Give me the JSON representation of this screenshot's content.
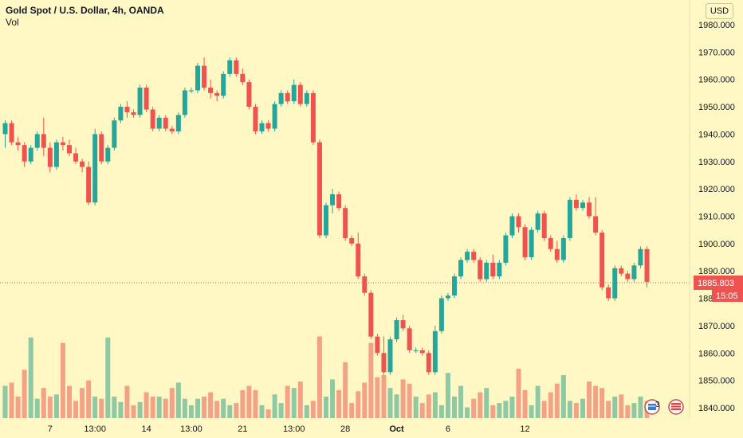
{
  "header": {
    "title": "Gold Spot / U.S. Dollar, 4h, OANDA",
    "volume_label": "Vol",
    "currency_button": "USD"
  },
  "price_badge": {
    "price": "1885.803",
    "countdown": "15:05"
  },
  "colors": {
    "background": "#FFF8C4",
    "up": "#26A69A",
    "down": "#EF5350",
    "vol_up": "#8EC9A4",
    "vol_down": "#F4A287",
    "price_line": "#EF5350"
  },
  "chart_data": {
    "type": "candlestick",
    "title": "Gold Spot / U.S. Dollar, 4h, OANDA",
    "y_axis": {
      "ticks": [
        "1840.000",
        "1850.000",
        "1860.000",
        "1870.000",
        "1880.000",
        "1890.000",
        "1900.000",
        "1910.000",
        "1920.000",
        "1930.000",
        "1940.000",
        "1950.000",
        "1960.000",
        "1970.000",
        "1980.000"
      ],
      "ylim": [
        1837,
        1982
      ],
      "position": "right"
    },
    "x_axis": {
      "ticks": [
        {
          "label": "7",
          "bar": 7
        },
        {
          "label": "13:00",
          "bar": 14
        },
        {
          "label": "14",
          "bar": 22
        },
        {
          "label": "13:00",
          "bar": 29
        },
        {
          "label": "21",
          "bar": 37
        },
        {
          "label": "13:00",
          "bar": 45
        },
        {
          "label": "28",
          "bar": 53
        },
        {
          "label": "Oct",
          "bar": 61,
          "bold": true
        },
        {
          "label": "6",
          "bar": 69
        },
        {
          "label": "12",
          "bar": 81
        }
      ]
    },
    "current_price": 1885.803,
    "candles": [
      [
        1940,
        1945,
        1935,
        1944
      ],
      [
        1944,
        1945,
        1936,
        1937
      ],
      [
        1937,
        1939,
        1934,
        1936
      ],
      [
        1936,
        1937,
        1928,
        1930
      ],
      [
        1930,
        1936,
        1929,
        1935
      ],
      [
        1935,
        1941,
        1934,
        1940
      ],
      [
        1940,
        1946,
        1932,
        1935
      ],
      [
        1935,
        1937,
        1926,
        1928
      ],
      [
        1928,
        1938,
        1927,
        1937
      ],
      [
        1937,
        1939,
        1934,
        1936
      ],
      [
        1936,
        1938,
        1932,
        1933
      ],
      [
        1933,
        1935,
        1929,
        1930
      ],
      [
        1930,
        1931,
        1926,
        1928
      ],
      [
        1928,
        1930,
        1914,
        1915
      ],
      [
        1915,
        1942,
        1914,
        1940
      ],
      [
        1940,
        1941,
        1929,
        1930
      ],
      [
        1930,
        1936,
        1929,
        1935
      ],
      [
        1935,
        1946,
        1934,
        1945
      ],
      [
        1945,
        1951,
        1944,
        1950
      ],
      [
        1950,
        1952,
        1946,
        1948
      ],
      [
        1948,
        1949,
        1946,
        1947
      ],
      [
        1947,
        1958,
        1946,
        1957
      ],
      [
        1957,
        1958,
        1948,
        1949
      ],
      [
        1949,
        1950,
        1941,
        1942
      ],
      [
        1942,
        1947,
        1941,
        1946
      ],
      [
        1946,
        1947,
        1941,
        1942
      ],
      [
        1942,
        1943,
        1940,
        1941
      ],
      [
        1941,
        1948,
        1940,
        1947
      ],
      [
        1947,
        1957,
        1946,
        1956
      ],
      [
        1956,
        1957,
        1955,
        1956
      ],
      [
        1956,
        1966,
        1955,
        1965
      ],
      [
        1965,
        1968,
        1956,
        1957
      ],
      [
        1957,
        1960,
        1953,
        1955
      ],
      [
        1955,
        1956,
        1952,
        1954
      ],
      [
        1954,
        1963,
        1953,
        1962
      ],
      [
        1962,
        1968,
        1961,
        1967
      ],
      [
        1967,
        1968,
        1961,
        1962
      ],
      [
        1962,
        1964,
        1958,
        1959
      ],
      [
        1959,
        1960,
        1949,
        1950
      ],
      [
        1950,
        1951,
        1940,
        1941
      ],
      [
        1941,
        1945,
        1940,
        1944
      ],
      [
        1944,
        1945,
        1941,
        1942
      ],
      [
        1942,
        1952,
        1941,
        1951
      ],
      [
        1951,
        1956,
        1950,
        1955
      ],
      [
        1955,
        1956,
        1951,
        1952
      ],
      [
        1952,
        1960,
        1951,
        1958
      ],
      [
        1958,
        1959,
        1950,
        1951
      ],
      [
        1951,
        1956,
        1950,
        1955
      ],
      [
        1955,
        1956,
        1936,
        1937
      ],
      [
        1937,
        1938,
        1902,
        1903
      ],
      [
        1903,
        1915,
        1902,
        1914
      ],
      [
        1914,
        1920,
        1911,
        1918
      ],
      [
        1918,
        1919,
        1912,
        1913
      ],
      [
        1913,
        1914,
        1901,
        1902
      ],
      [
        1902,
        1903,
        1899,
        1900
      ],
      [
        1900,
        1904,
        1887,
        1888
      ],
      [
        1888,
        1889,
        1881,
        1882
      ],
      [
        1882,
        1883,
        1865,
        1866
      ],
      [
        1866,
        1867,
        1859,
        1860
      ],
      [
        1860,
        1866,
        1852,
        1853
      ],
      [
        1853,
        1866,
        1852,
        1865
      ],
      [
        1865,
        1873,
        1864,
        1872
      ],
      [
        1872,
        1874,
        1868,
        1869
      ],
      [
        1869,
        1870,
        1860,
        1861
      ],
      [
        1861,
        1862,
        1860,
        1861
      ],
      [
        1861,
        1862,
        1859,
        1860
      ],
      [
        1860,
        1861,
        1852,
        1853
      ],
      [
        1853,
        1870,
        1852,
        1868
      ],
      [
        1868,
        1881,
        1867,
        1880
      ],
      [
        1880,
        1882,
        1879,
        1881
      ],
      [
        1881,
        1889,
        1880,
        1888
      ],
      [
        1888,
        1895,
        1887,
        1894
      ],
      [
        1894,
        1898,
        1893,
        1897
      ],
      [
        1897,
        1898,
        1893,
        1894
      ],
      [
        1894,
        1895,
        1886,
        1887
      ],
      [
        1887,
        1894,
        1886,
        1893
      ],
      [
        1893,
        1896,
        1887,
        1888
      ],
      [
        1888,
        1894,
        1887,
        1893
      ],
      [
        1893,
        1904,
        1892,
        1903
      ],
      [
        1903,
        1911,
        1902,
        1910
      ],
      [
        1910,
        1911,
        1904,
        1906
      ],
      [
        1906,
        1907,
        1894,
        1895
      ],
      [
        1895,
        1906,
        1894,
        1905
      ],
      [
        1905,
        1912,
        1904,
        1911
      ],
      [
        1911,
        1912,
        1901,
        1902
      ],
      [
        1902,
        1903,
        1897,
        1898
      ],
      [
        1898,
        1901,
        1893,
        1894
      ],
      [
        1894,
        1903,
        1893,
        1902
      ],
      [
        1902,
        1917,
        1901,
        1916
      ],
      [
        1916,
        1918,
        1912,
        1913
      ],
      [
        1913,
        1916,
        1912,
        1915
      ],
      [
        1915,
        1917,
        1909,
        1910
      ],
      [
        1910,
        1917,
        1903,
        1904
      ],
      [
        1904,
        1905,
        1883,
        1884
      ],
      [
        1884,
        1885,
        1879,
        1880
      ],
      [
        1880,
        1892,
        1879,
        1891
      ],
      [
        1891,
        1892,
        1888,
        1889
      ],
      [
        1889,
        1890,
        1886,
        1887
      ],
      [
        1887,
        1893,
        1886,
        1892
      ],
      [
        1892,
        1899,
        1891,
        1898
      ],
      [
        1898,
        1899,
        1884,
        1886
      ]
    ],
    "volumes": [
      30,
      33,
      20,
      45,
      75,
      18,
      28,
      20,
      22,
      70,
      30,
      16,
      28,
      35,
      20,
      18,
      75,
      20,
      15,
      30,
      12,
      15,
      24,
      20,
      20,
      18,
      28,
      33,
      18,
      12,
      18,
      20,
      24,
      16,
      18,
      12,
      14,
      26,
      30,
      26,
      12,
      8,
      22,
      14,
      30,
      28,
      34,
      12,
      16,
      76,
      20,
      36,
      26,
      52,
      14,
      25,
      33,
      70,
      38,
      40,
      28,
      22,
      36,
      32,
      20,
      14,
      22,
      24,
      12,
      42,
      20,
      30,
      10,
      18,
      24,
      28,
      12,
      14,
      16,
      20,
      46,
      26,
      12,
      30,
      16,
      24,
      32,
      40,
      16,
      14,
      18,
      34,
      30,
      28,
      16,
      20,
      22,
      12,
      14,
      20,
      16
    ]
  },
  "footer": {
    "events_count": "3"
  }
}
